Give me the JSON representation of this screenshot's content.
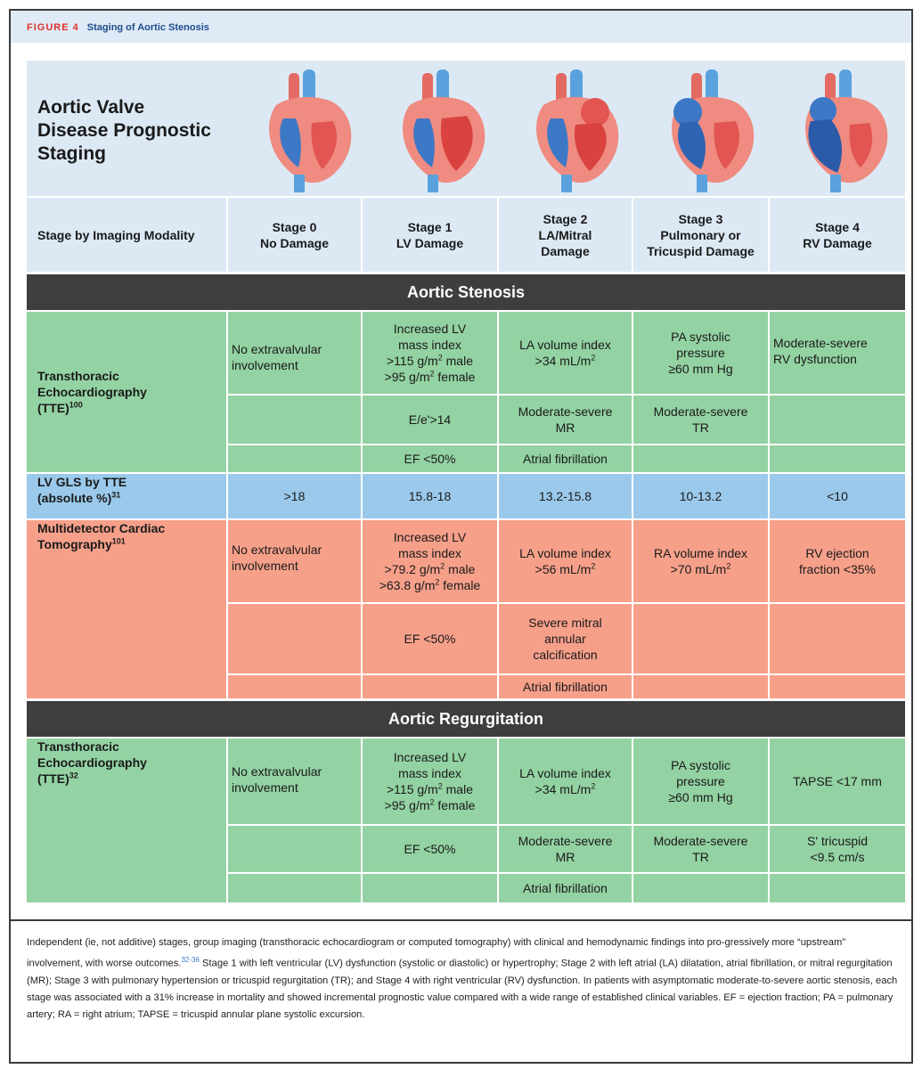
{
  "figure": {
    "label": "FIGURE 4",
    "title": "Staging of Aortic Stenosis"
  },
  "table_title": [
    "Aortic Valve",
    "Disease Prognostic",
    "Staging"
  ],
  "modality_header": "Stage by Imaging Modality",
  "stages": [
    {
      "line1": "Stage 0",
      "line2": "No Damage",
      "line3": ""
    },
    {
      "line1": "Stage 1",
      "line2": "LV Damage",
      "line3": ""
    },
    {
      "line1": "Stage 2",
      "line2": "LA/Mitral",
      "line3": "Damage"
    },
    {
      "line1": "Stage 3",
      "line2": "Pulmonary or",
      "line3": "Tricuspid Damage"
    },
    {
      "line1": "Stage 4",
      "line2": "RV Damage",
      "line3": ""
    }
  ],
  "sections": {
    "as": "Aortic Stenosis",
    "ar": "Aortic Regurgitation"
  },
  "as_tte": {
    "label_lines": [
      "Transthoracic",
      "Echocardiography",
      "(TTE)"
    ],
    "ref": "100",
    "s0": [
      "No extravalvular",
      "involvement"
    ],
    "s1a": [
      "Increased LV",
      "mass index",
      ">115 g/m",
      " male",
      ">95 g/m",
      " female"
    ],
    "s1b": "E/e'>14",
    "s1c": "EF <50%",
    "s2a": [
      "LA volume index",
      ">34 mL/m"
    ],
    "s2b": [
      "Moderate-severe",
      "MR"
    ],
    "s2c": "Atrial fibrillation",
    "s3a": [
      "PA systolic",
      "pressure",
      "≥60 mm Hg"
    ],
    "s3b": [
      "Moderate-severe",
      "TR"
    ],
    "s4a": [
      "Moderate-severe",
      "RV dysfunction"
    ]
  },
  "gls": {
    "label_lines": [
      "LV GLS by TTE",
      "(absolute %)"
    ],
    "ref": "31",
    "values": [
      ">18",
      "15.8-18",
      "13.2-15.8",
      "10-13.2",
      "<10"
    ]
  },
  "mdct": {
    "label_lines": [
      "Multidetector Cardiac",
      "Tomography"
    ],
    "ref": "101",
    "s0": [
      "No extravalvular",
      "involvement"
    ],
    "s1a": [
      "Increased LV",
      "mass index",
      ">79.2 g/m",
      " male",
      ">63.8 g/m",
      " female"
    ],
    "s1b": "EF <50%",
    "s2a": [
      "LA volume index",
      ">56 mL/m"
    ],
    "s2b": [
      "Severe mitral",
      "annular",
      "calcification"
    ],
    "s2c": "Atrial fibrillation",
    "s3a": [
      "RA volume index",
      ">70 mL/m"
    ],
    "s4a": [
      "RV ejection",
      "fraction <35%"
    ]
  },
  "ar_tte": {
    "label_lines": [
      "Transthoracic",
      "Echocardiography",
      "(TTE)"
    ],
    "ref": "32",
    "s0": [
      "No extravalvular",
      "involvement"
    ],
    "s1a": [
      "Increased LV",
      "mass index",
      ">115 g/m",
      " male",
      ">95 g/m",
      " female"
    ],
    "s1b": "EF <50%",
    "s2a": [
      "LA volume index",
      ">34 mL/m"
    ],
    "s2b": [
      "Moderate-severe",
      "MR"
    ],
    "s2c": "Atrial fibrillation",
    "s3a": [
      "PA systolic",
      "pressure",
      "≥60 mm Hg"
    ],
    "s3b": [
      "Moderate-severe",
      "TR"
    ],
    "s4a": "TAPSE <17 mm",
    "s4b": [
      "S' tricuspid",
      "<9.5 cm/s"
    ]
  },
  "sup2": "2",
  "caption": {
    "part1": "Independent (ie, not additive) stages, group imaging (transthoracic echocardiogram or computed tomography) with clinical and hemodynamic findings into pro-gressively more “upstream” involvement, with worse outcomes.",
    "ref": "32-36",
    "part2": " Stage 1 with left ventricular (LV) dysfunction (systolic or diastolic) or hypertrophy; Stage 2 with left atrial (LA) dilatation, atrial fibrillation, or mitral regurgitation (MR); Stage 3 with pulmonary hypertension or tricuspid regurgitation (TR); and Stage 4 with right ventricular (RV) dysfunction. In patients with asymptomatic moderate-to-severe aortic stenosis, each stage was associated with a 31% increase in mortality and showed incremental prognostic value compared with a wide range of established clinical variables. EF = ejection fraction; PA = pulmonary artery; RA = right atrium; TAPSE = tricuspid annular plane systolic excursion."
  },
  "colors": {
    "tte_green": "#93d2a2",
    "gls_blue": "#9ac9eb",
    "ct_salmon": "#f6a08a",
    "header_blue": "#dce9f5",
    "section_dark": "#3e3e3e",
    "figure_label_red": "#e0332a",
    "figure_title_blue": "#1d4d8a"
  },
  "icons": [
    "heart-stage-0-icon",
    "heart-stage-1-icon",
    "heart-stage-2-icon",
    "heart-stage-3-icon",
    "heart-stage-4-icon"
  ]
}
